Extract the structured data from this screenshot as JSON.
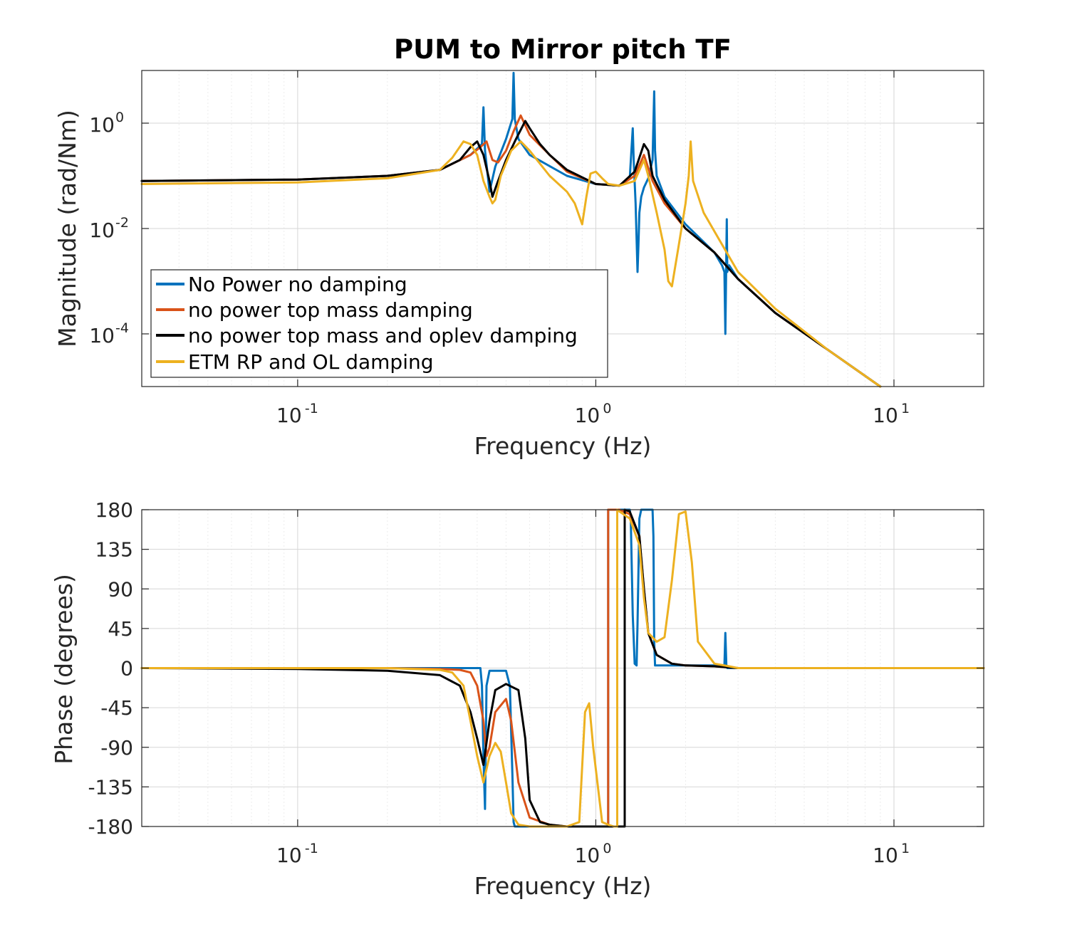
{
  "figure": {
    "title": "PUM to Mirror pitch TF"
  },
  "colors": {
    "series": [
      "#0072BD",
      "#D95319",
      "#000000",
      "#EDB120"
    ],
    "grid": "#dfdfdf",
    "axis": "#262626"
  },
  "chart_data": [
    {
      "type": "line",
      "name": "magnitude",
      "title": "PUM to Mirror pitch TF",
      "xlabel": "Frequency (Hz)",
      "ylabel": "Magnitude (rad/Nm)",
      "xscale": "log",
      "yscale": "log",
      "xlim": [
        0.03,
        20
      ],
      "ylim": [
        1e-05,
        10
      ],
      "xticks": [
        "10^-1",
        "10^0",
        "10^1"
      ],
      "yticks": [
        "10^0",
        "10^-2",
        "10^-4"
      ],
      "grid": true,
      "legend_position": "lower-left",
      "series": [
        {
          "name": "No Power no damping",
          "x": [
            0.03,
            0.1,
            0.2,
            0.3,
            0.38,
            0.415,
            0.42,
            0.425,
            0.44,
            0.46,
            0.5,
            0.525,
            0.53,
            0.535,
            0.55,
            0.6,
            0.8,
            1.0,
            1.2,
            1.3,
            1.33,
            1.34,
            1.36,
            1.38,
            1.39,
            1.4,
            1.42,
            1.45,
            1.5,
            1.55,
            1.57,
            1.58,
            1.6,
            1.7,
            2.0,
            2.5,
            2.65,
            2.7,
            2.72,
            2.75,
            2.76,
            2.8,
            3,
            4,
            6,
            9
          ],
          "y": [
            0.08,
            0.085,
            0.1,
            0.13,
            0.25,
            0.4,
            2.0,
            0.3,
            0.05,
            0.15,
            0.5,
            1.2,
            9.0,
            1.2,
            0.5,
            0.25,
            0.1,
            0.07,
            0.065,
            0.09,
            0.8,
            0.2,
            0.03,
            0.0015,
            0.005,
            0.02,
            0.04,
            0.06,
            0.09,
            0.2,
            4.0,
            0.3,
            0.1,
            0.04,
            0.012,
            0.0035,
            0.002,
            0.0015,
            0.0001,
            0.015,
            0.0015,
            0.002,
            0.0011,
            0.00025,
            5e-05,
            1e-05
          ]
        },
        {
          "name": "no power top mass damping",
          "x": [
            0.03,
            0.1,
            0.2,
            0.3,
            0.38,
            0.41,
            0.43,
            0.45,
            0.47,
            0.5,
            0.53,
            0.56,
            0.6,
            0.7,
            0.8,
            1.0,
            1.2,
            1.35,
            1.45,
            1.55,
            1.7,
            2.0,
            2.5,
            3,
            4,
            6,
            9
          ],
          "y": [
            0.08,
            0.085,
            0.1,
            0.13,
            0.25,
            0.35,
            0.45,
            0.2,
            0.18,
            0.3,
            0.7,
            1.4,
            0.6,
            0.25,
            0.12,
            0.07,
            0.065,
            0.1,
            0.25,
            0.08,
            0.03,
            0.01,
            0.0035,
            0.0011,
            0.00025,
            5e-05,
            1e-05
          ]
        },
        {
          "name": "no power top mass and oplev damping",
          "x": [
            0.03,
            0.1,
            0.2,
            0.3,
            0.35,
            0.38,
            0.4,
            0.42,
            0.44,
            0.45,
            0.47,
            0.5,
            0.54,
            0.58,
            0.6,
            0.65,
            0.7,
            0.8,
            1.0,
            1.2,
            1.35,
            1.45,
            1.5,
            1.55,
            1.7,
            2.0,
            2.5,
            3,
            4,
            6,
            9
          ],
          "y": [
            0.08,
            0.085,
            0.1,
            0.13,
            0.2,
            0.35,
            0.45,
            0.25,
            0.08,
            0.04,
            0.08,
            0.2,
            0.5,
            1.1,
            0.8,
            0.4,
            0.25,
            0.13,
            0.07,
            0.065,
            0.12,
            0.4,
            0.3,
            0.1,
            0.035,
            0.01,
            0.0035,
            0.0011,
            0.00025,
            5e-05,
            1e-05
          ]
        },
        {
          "name": "ETM RP and OL damping",
          "x": [
            0.03,
            0.1,
            0.2,
            0.3,
            0.33,
            0.36,
            0.38,
            0.4,
            0.42,
            0.44,
            0.45,
            0.46,
            0.48,
            0.52,
            0.56,
            0.6,
            0.7,
            0.8,
            0.85,
            0.9,
            0.93,
            0.96,
            1.0,
            1.05,
            1.1,
            1.2,
            1.35,
            1.45,
            1.5,
            1.6,
            1.7,
            1.75,
            1.8,
            1.9,
            2.0,
            2.05,
            2.08,
            2.12,
            2.3,
            2.6,
            3,
            4,
            6,
            9
          ],
          "y": [
            0.07,
            0.075,
            0.09,
            0.13,
            0.22,
            0.45,
            0.4,
            0.25,
            0.08,
            0.04,
            0.03,
            0.035,
            0.1,
            0.3,
            0.45,
            0.3,
            0.1,
            0.05,
            0.03,
            0.012,
            0.04,
            0.11,
            0.12,
            0.09,
            0.07,
            0.065,
            0.08,
            0.2,
            0.1,
            0.02,
            0.004,
            0.001,
            0.0008,
            0.005,
            0.03,
            0.1,
            0.45,
            0.08,
            0.02,
            0.006,
            0.0015,
            0.0003,
            5e-05,
            1e-05
          ]
        }
      ]
    },
    {
      "type": "line",
      "name": "phase",
      "xlabel": "Frequency (Hz)",
      "ylabel": "Phase (degrees)",
      "xscale": "log",
      "xlim": [
        0.03,
        20
      ],
      "ylim": [
        -180,
        180
      ],
      "xticks": [
        "10^-1",
        "10^0",
        "10^1"
      ],
      "yticks": [
        "180",
        "135",
        "90",
        "45",
        "0",
        "-45",
        "-90",
        "-135",
        "-180"
      ],
      "grid": true,
      "series": [
        {
          "name": "No Power no damping",
          "x": [
            0.03,
            0.2,
            0.4,
            0.41,
            0.415,
            0.42,
            0.425,
            0.43,
            0.44,
            0.5,
            0.515,
            0.525,
            0.53,
            0.535,
            0.55,
            0.6,
            0.8,
            1.0,
            1.05,
            1.1,
            1.1,
            1.2,
            1.3,
            1.31,
            1.33,
            1.35,
            1.37,
            1.38,
            1.4,
            1.42,
            1.5,
            1.55,
            1.56,
            1.57,
            1.58,
            1.6,
            1.7,
            2.0,
            2.5,
            2.7,
            2.72,
            2.74,
            2.76,
            3,
            5,
            20
          ],
          "y": [
            0,
            0,
            0,
            0,
            -20,
            -100,
            -160,
            -20,
            -3,
            -3,
            -20,
            -120,
            -175,
            -180,
            -180,
            -180,
            -180,
            -180,
            -180,
            -180,
            180,
            180,
            180,
            170,
            60,
            5,
            3,
            50,
            170,
            180,
            180,
            180,
            150,
            30,
            3,
            3,
            3,
            3,
            3,
            3,
            40,
            3,
            0,
            0,
            0,
            0
          ]
        },
        {
          "name": "no power top mass damping",
          "x": [
            0.03,
            0.2,
            0.3,
            0.35,
            0.38,
            0.4,
            0.42,
            0.43,
            0.44,
            0.46,
            0.5,
            0.52,
            0.55,
            0.6,
            0.7,
            0.8,
            1.0,
            1.1,
            1.1,
            1.2,
            1.3,
            1.4,
            1.45,
            1.5,
            1.6,
            1.8,
            2.0,
            2.5,
            3,
            5,
            20
          ],
          "y": [
            0,
            0,
            -1,
            -2,
            -5,
            -20,
            -60,
            -100,
            -90,
            -50,
            -35,
            -60,
            -130,
            -170,
            -178,
            -180,
            -180,
            -180,
            180,
            180,
            175,
            150,
            90,
            40,
            15,
            5,
            3,
            2,
            0,
            0,
            0
          ]
        },
        {
          "name": "no power top mass and oplev damping",
          "x": [
            0.03,
            0.1,
            0.2,
            0.3,
            0.35,
            0.38,
            0.4,
            0.42,
            0.44,
            0.46,
            0.5,
            0.55,
            0.58,
            0.6,
            0.65,
            0.7,
            0.8,
            1.0,
            1.1,
            1.2,
            1.25,
            1.25,
            1.3,
            1.4,
            1.45,
            1.5,
            1.6,
            1.8,
            2.0,
            2.5,
            3,
            5,
            20
          ],
          "y": [
            0,
            -1,
            -3,
            -8,
            -20,
            -50,
            -80,
            -110,
            -60,
            -25,
            -18,
            -25,
            -80,
            -150,
            -175,
            -178,
            -180,
            -180,
            -180,
            -180,
            -180,
            180,
            178,
            150,
            90,
            40,
            15,
            5,
            3,
            2,
            0,
            0,
            0
          ]
        },
        {
          "name": "ETM RP and OL damping",
          "x": [
            0.03,
            0.2,
            0.3,
            0.33,
            0.36,
            0.38,
            0.4,
            0.42,
            0.44,
            0.46,
            0.48,
            0.5,
            0.52,
            0.55,
            0.6,
            0.7,
            0.8,
            0.88,
            0.92,
            0.95,
            0.98,
            1.05,
            1.1,
            1.15,
            1.18,
            1.18,
            1.2,
            1.3,
            1.4,
            1.45,
            1.5,
            1.6,
            1.7,
            1.8,
            1.9,
            2.0,
            2.1,
            2.2,
            2.5,
            2.8,
            3,
            5,
            20
          ],
          "y": [
            0,
            0,
            -2,
            -5,
            -20,
            -60,
            -100,
            -130,
            -100,
            -85,
            -95,
            -130,
            -165,
            -178,
            -180,
            -180,
            -180,
            -175,
            -50,
            -40,
            -90,
            -175,
            -178,
            -180,
            -180,
            180,
            178,
            170,
            140,
            80,
            40,
            30,
            35,
            100,
            175,
            178,
            120,
            30,
            5,
            2,
            0,
            0,
            0
          ]
        }
      ]
    }
  ],
  "legend": {
    "entries": [
      "No Power no damping",
      "no power top mass damping",
      "no power top mass and oplev damping",
      "ETM RP and OL damping"
    ]
  }
}
